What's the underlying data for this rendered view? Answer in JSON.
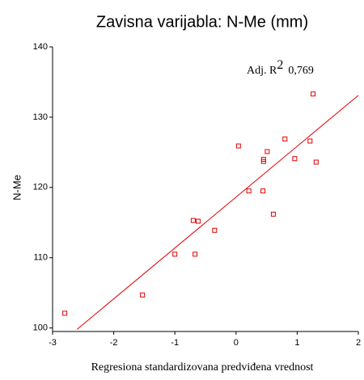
{
  "chart_data": {
    "type": "scatter",
    "title": "Zavisna varijabla: N-Me (mm)",
    "x_label": "Regresiona standardizovana predviđena vrednost",
    "y_label": "N-Me",
    "annotation": {
      "label": "Adj. R",
      "superscript": "2",
      "value": "0,769"
    },
    "x": [
      -2.8,
      -1.53,
      -1.0,
      -0.67,
      -0.7,
      -0.62,
      -0.35,
      0.04,
      0.21,
      0.44,
      0.45,
      0.45,
      0.51,
      0.61,
      0.8,
      0.96,
      1.21,
      1.26,
      1.31
    ],
    "values": [
      102.1,
      104.7,
      110.5,
      110.5,
      115.3,
      115.2,
      113.9,
      125.9,
      119.5,
      119.5,
      124.0,
      123.7,
      125.1,
      116.2,
      126.9,
      124.1,
      126.6,
      133.3,
      123.6
    ],
    "color": "#e00000",
    "fit_line": {
      "x": [
        -2.6,
        2
      ],
      "y": [
        99.8,
        133.1
      ]
    },
    "xlim": [
      -3,
      2
    ],
    "ylim": [
      99.5,
      140
    ],
    "xticks": [
      -3,
      -2,
      -1,
      0,
      1,
      2
    ],
    "yticks": [
      100,
      110,
      120,
      130,
      140
    ]
  }
}
